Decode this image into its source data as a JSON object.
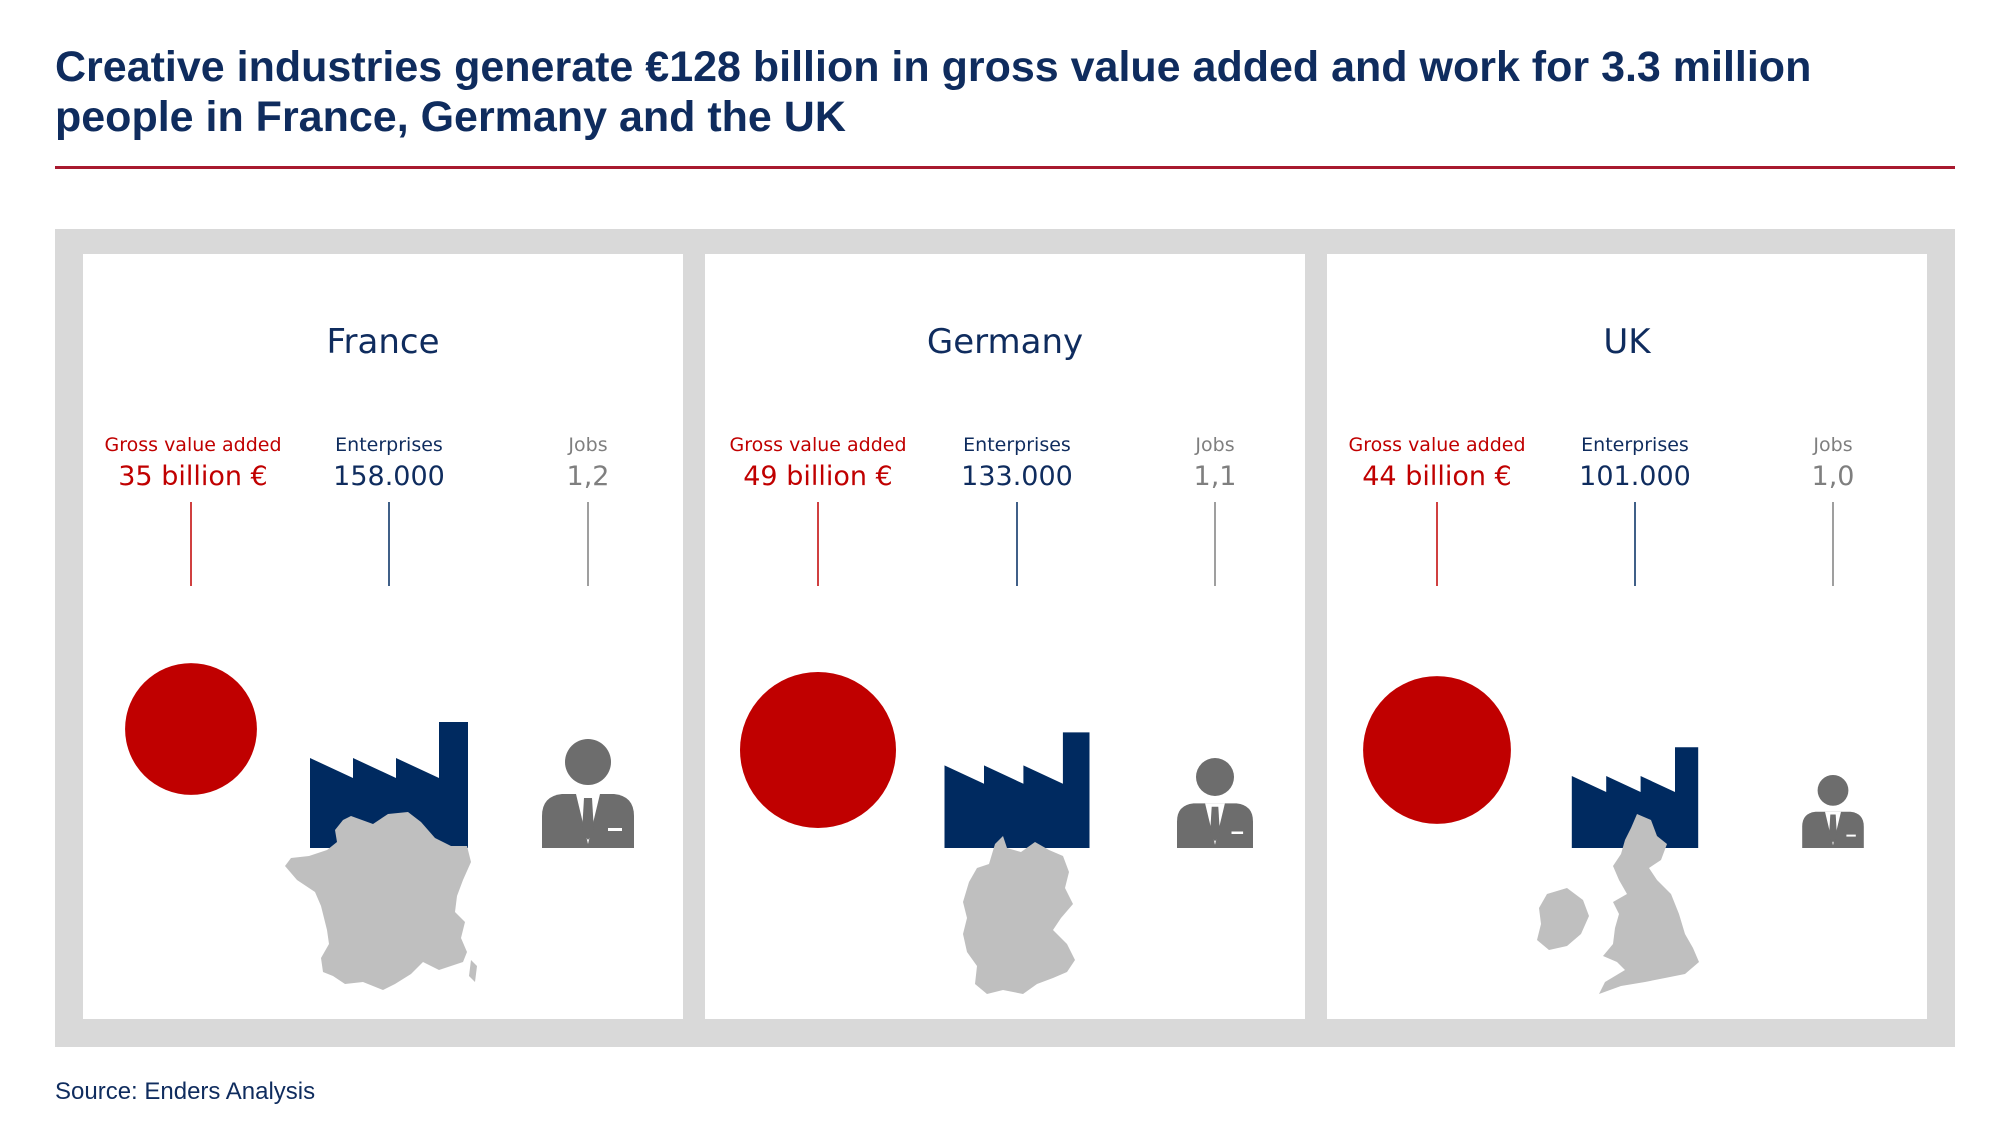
{
  "title": "Creative industries generate €128 billion in gross value added and work for 3.3 million people in France, Germany and the UK",
  "source": "Source: Enders Analysis",
  "colors": {
    "gva": "#c00000",
    "enterprises": "#002a60",
    "jobs": "#6d6d6d",
    "map": "#bfbfbf",
    "rule": "#a8192e"
  },
  "chart_data": {
    "type": "proportional-symbol",
    "metrics": [
      "Gross value added",
      "Enterprises",
      "Jobs"
    ],
    "countries": [
      {
        "name": "France",
        "gva_label": "Gross value added",
        "gva_value": "35 billion €",
        "gva": 35,
        "enterprises_label": "Enterprises",
        "enterprises_value": "158.000",
        "enterprises": 158000,
        "jobs_label": "Jobs",
        "jobs_value": "1,2",
        "jobs": 1.2
      },
      {
        "name": "Germany",
        "gva_label": "Gross value added",
        "gva_value": "49 billion €",
        "gva": 49,
        "enterprises_label": "Enterprises",
        "enterprises_value": "133.000",
        "enterprises": 133000,
        "jobs_label": "Jobs",
        "jobs_value": "1,1",
        "jobs": 1.1
      },
      {
        "name": "UK",
        "gva_label": "Gross value added",
        "gva_value": "44 billion €",
        "gva": 44,
        "enterprises_label": "Enterprises",
        "enterprises_value": "101.000",
        "enterprises": 101000,
        "jobs_label": "Jobs",
        "jobs_value": "1,0",
        "jobs": 1.0
      }
    ]
  }
}
